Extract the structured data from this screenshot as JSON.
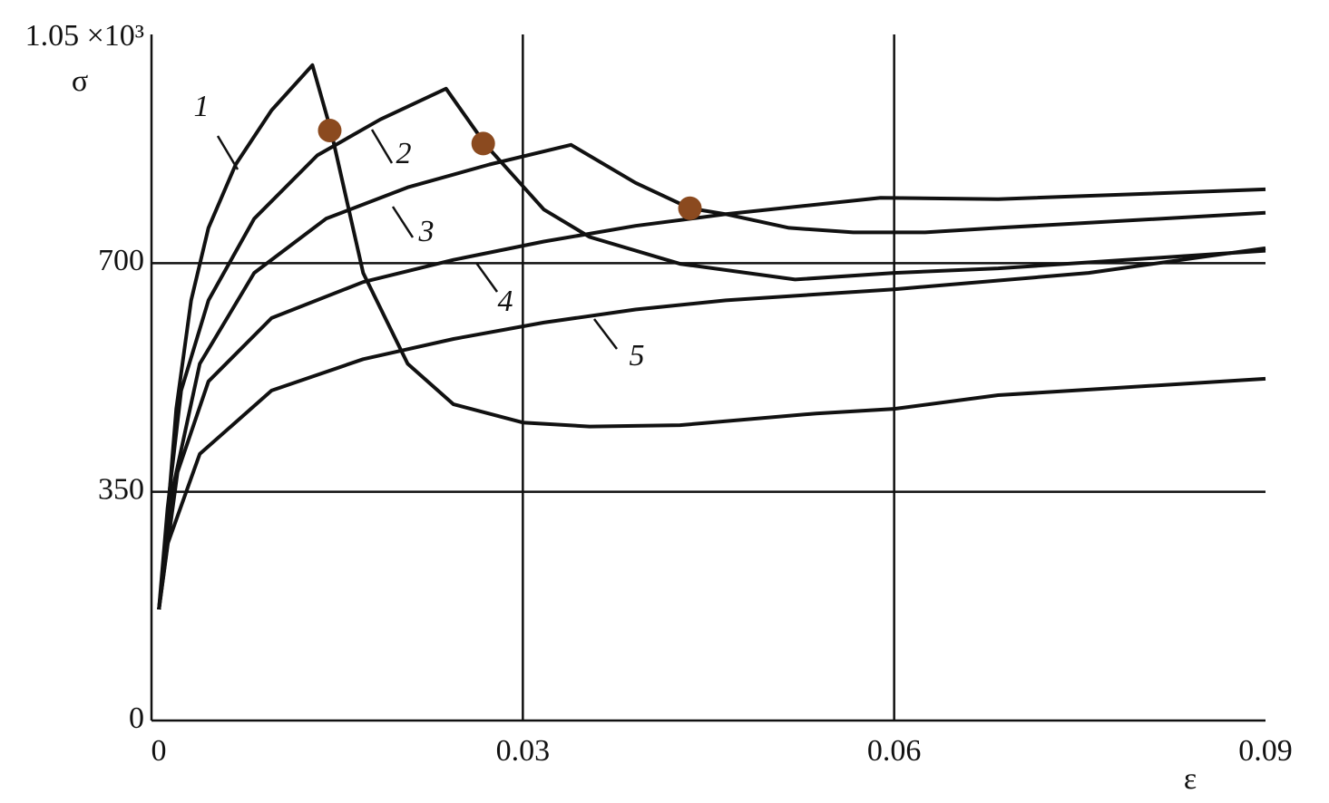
{
  "chart_data": {
    "type": "line",
    "xlabel": "ε",
    "ylabel": "σ",
    "xlim": [
      0,
      0.09
    ],
    "ylim": [
      0,
      1050
    ],
    "xticks": [
      0,
      0.03,
      0.06,
      0.09
    ],
    "yticks": [
      0,
      350,
      700,
      {
        "value": 1050,
        "label": "1.05 ×10³"
      }
    ],
    "grid": true,
    "series": [
      {
        "name": "1",
        "color": "#111111",
        "x": [
          0.0006,
          0.001,
          0.002,
          0.0032,
          0.0046,
          0.0068,
          0.0097,
          0.013,
          0.0145,
          0.0171,
          0.0207,
          0.0244,
          0.03,
          0.0354,
          0.0427,
          0.0537,
          0.06,
          0.0684,
          0.09
        ],
        "values": [
          170,
          242,
          477,
          643,
          754,
          851,
          934,
          1003,
          903,
          685,
          546,
          484,
          456,
          450,
          452,
          470,
          477,
          498,
          523
        ]
      },
      {
        "name": "2",
        "color": "#111111",
        "x": [
          0.0006,
          0.0013,
          0.0024,
          0.0046,
          0.0083,
          0.0134,
          0.0185,
          0.0238,
          0.027,
          0.0317,
          0.0354,
          0.0427,
          0.052,
          0.06,
          0.0684,
          0.09
        ],
        "values": [
          170,
          325,
          505,
          643,
          768,
          865,
          920,
          967,
          881,
          782,
          740,
          699,
          675,
          685,
          692,
          719
        ]
      },
      {
        "name": "3",
        "color": "#111111",
        "x": [
          0.0006,
          0.0017,
          0.0039,
          0.0083,
          0.0141,
          0.0207,
          0.0273,
          0.0339,
          0.0391,
          0.0435,
          0.0464,
          0.0515,
          0.0567,
          0.0625,
          0.0684,
          0.09
        ],
        "values": [
          170,
          353,
          546,
          685,
          768,
          816,
          851,
          881,
          823,
          784,
          775,
          754,
          747,
          747,
          754,
          777
        ]
      },
      {
        "name": "4",
        "color": "#111111",
        "x": [
          0.0006,
          0.0021,
          0.0046,
          0.0097,
          0.0171,
          0.0244,
          0.0317,
          0.0391,
          0.0464,
          0.0589,
          0.0684,
          0.09
        ],
        "values": [
          170,
          380,
          519,
          616,
          671,
          705,
          733,
          757,
          775,
          800,
          798,
          813
        ]
      },
      {
        "name": "5",
        "color": "#111111",
        "x": [
          0.0006,
          0.0013,
          0.0039,
          0.0097,
          0.0171,
          0.0244,
          0.0317,
          0.0391,
          0.0464,
          0.06,
          0.0757,
          0.09
        ],
        "values": [
          170,
          270,
          408,
          505,
          553,
          584,
          609,
          629,
          643,
          660,
          685,
          723
        ]
      }
    ],
    "markers": {
      "type": "scatter",
      "color": "#8b4a1f",
      "x": [
        0.0144,
        0.0268,
        0.0435
      ],
      "values": [
        903,
        883,
        784
      ]
    }
  }
}
